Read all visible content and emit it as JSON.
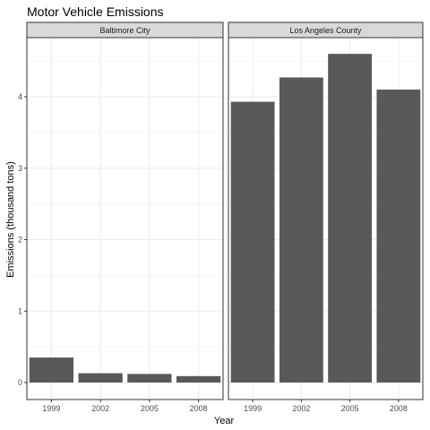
{
  "chart_data": {
    "type": "bar",
    "title": "Motor Vehicle Emissions",
    "xlabel": "Year",
    "ylabel": "Emissions (thousand tons)",
    "categories": [
      "1999",
      "2002",
      "2005",
      "2008"
    ],
    "ylim": [
      0,
      4.8
    ],
    "yticks": [
      0,
      1,
      2,
      3,
      4
    ],
    "grid": true,
    "bar_color": "#595959",
    "panel_border_color": "#333333",
    "strip_fill": "#d9d9d9",
    "grid_color": "#ebebeb",
    "facets": [
      {
        "label": "Baltimore City",
        "values": [
          0.35,
          0.13,
          0.12,
          0.09
        ]
      },
      {
        "label": "Los Angeles County",
        "values": [
          3.93,
          4.27,
          4.6,
          4.1
        ]
      }
    ]
  }
}
